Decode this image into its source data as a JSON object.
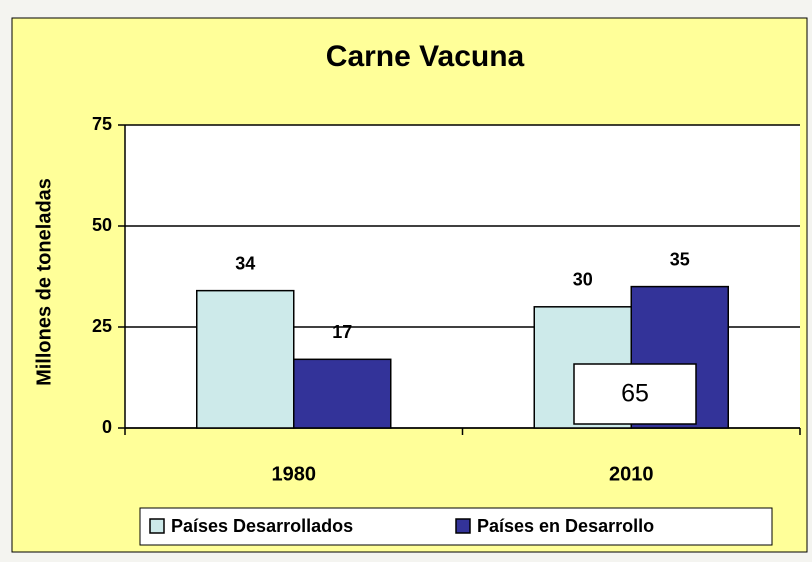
{
  "chart_data": {
    "type": "bar",
    "title": "Carne Vacuna",
    "y_label": "Millones de toneladas",
    "categories": [
      "1980",
      "2010"
    ],
    "series": [
      {
        "name": "Países Desarrollados",
        "color": "#cdeaea",
        "values": [
          34,
          30
        ]
      },
      {
        "name": "Países en Desarrollo",
        "color": "#333399",
        "values": [
          17,
          35
        ]
      }
    ],
    "ylim": [
      0,
      75
    ],
    "yticks": [
      0,
      25,
      50,
      75
    ],
    "grid": true,
    "legend": "bottom",
    "annotations": [
      65
    ]
  }
}
